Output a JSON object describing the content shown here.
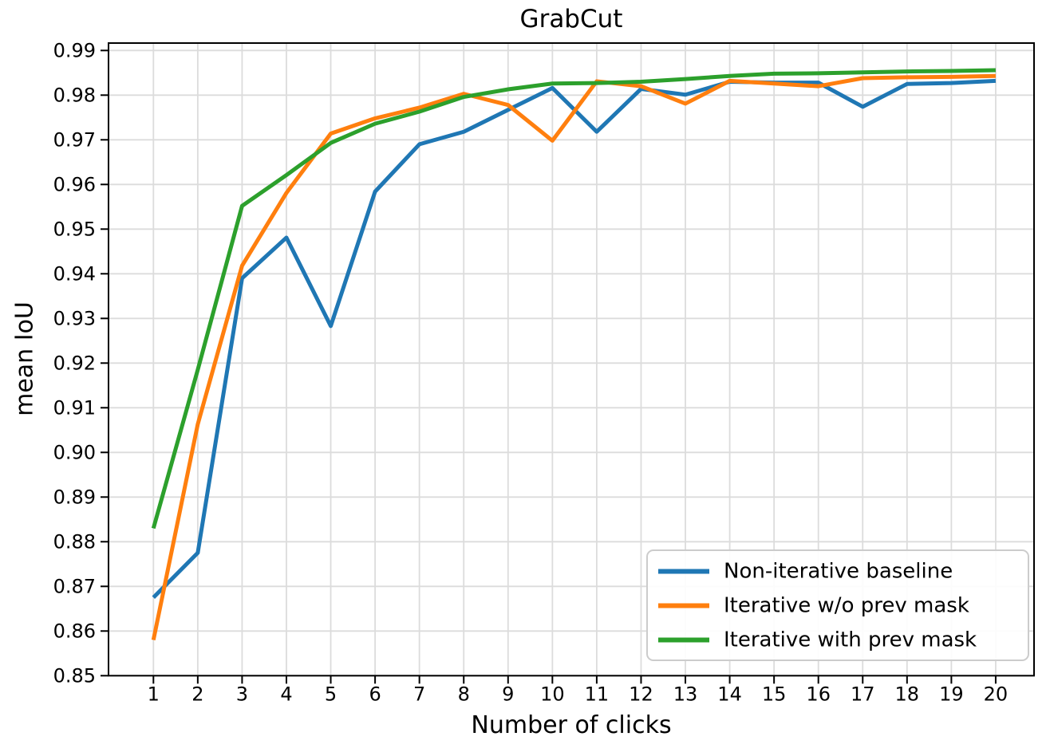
{
  "chart_data": {
    "type": "line",
    "title": "GrabCut",
    "xlabel": "Number of clicks",
    "ylabel": "mean IoU",
    "x": [
      1,
      2,
      3,
      4,
      5,
      6,
      7,
      8,
      9,
      10,
      11,
      12,
      13,
      14,
      15,
      16,
      17,
      18,
      19,
      20
    ],
    "x_tick_labels": [
      "1",
      "2",
      "3",
      "4",
      "5",
      "6",
      "7",
      "8",
      "9",
      "10",
      "11",
      "12",
      "13",
      "14",
      "15",
      "16",
      "17",
      "18",
      "19",
      "20"
    ],
    "y_ticks": [
      0.85,
      0.86,
      0.87,
      0.88,
      0.89,
      0.9,
      0.91,
      0.92,
      0.93,
      0.94,
      0.95,
      0.96,
      0.97,
      0.98,
      0.99
    ],
    "y_tick_labels": [
      "0.85",
      "0.86",
      "0.87",
      "0.88",
      "0.89",
      "0.90",
      "0.91",
      "0.92",
      "0.93",
      "0.94",
      "0.95",
      "0.96",
      "0.97",
      "0.98",
      "0.99"
    ],
    "xlim": [
      0,
      21
    ],
    "ylim": [
      0.85,
      0.992
    ],
    "grid": true,
    "legend_position": "lower right",
    "series": [
      {
        "name": "Non-iterative baseline",
        "color": "#1f77b4",
        "values": [
          0.8675,
          0.8775,
          0.939,
          0.9481,
          0.9283,
          0.9584,
          0.969,
          0.9718,
          0.9767,
          0.9816,
          0.9718,
          0.9814,
          0.9801,
          0.983,
          0.9828,
          0.9828,
          0.9774,
          0.9825,
          0.9827,
          0.9832
        ]
      },
      {
        "name": "Iterative w/o prev mask",
        "color": "#ff7f0e",
        "values": [
          0.858,
          0.9063,
          0.9418,
          0.9581,
          0.9714,
          0.9748,
          0.9772,
          0.9803,
          0.9778,
          0.9698,
          0.9831,
          0.982,
          0.9781,
          0.9832,
          0.9826,
          0.982,
          0.9838,
          0.984,
          0.9841,
          0.9843
        ]
      },
      {
        "name": "Iterative with prev mask",
        "color": "#2ca02c",
        "values": [
          0.883,
          0.9185,
          0.9552,
          0.9621,
          0.9693,
          0.9736,
          0.9763,
          0.9796,
          0.9813,
          0.9826,
          0.9827,
          0.983,
          0.9836,
          0.9843,
          0.9848,
          0.9849,
          0.9851,
          0.9853,
          0.9854,
          0.9856
        ]
      }
    ],
    "colors": {
      "grid": "#dcdcdc",
      "axis": "#000000",
      "background": "#ffffff"
    }
  }
}
